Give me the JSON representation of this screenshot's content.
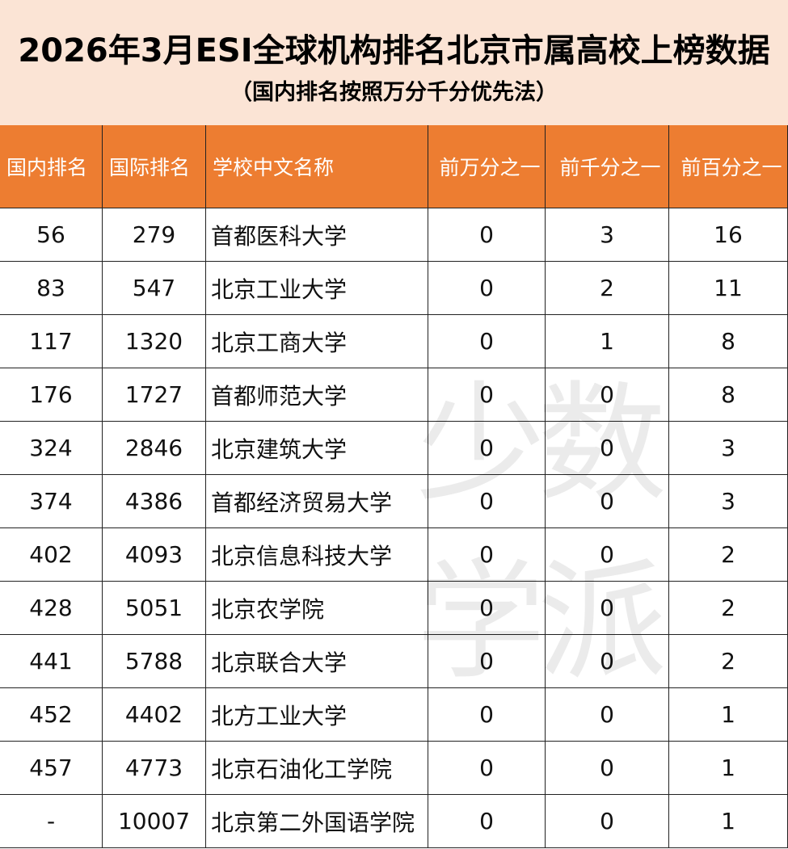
{
  "header": {
    "title": "2026年3月ESI全球机构排名北京市属高校上榜数据",
    "subtitle": "（国内排名按照万分千分优先法）"
  },
  "table": {
    "columns": [
      "国内排名",
      "国际排名",
      "学校中文名称",
      "前万分之一",
      "前千分之一",
      "前百分之一"
    ],
    "rows": [
      [
        "56",
        "279",
        "首都医科大学",
        "0",
        "3",
        "16"
      ],
      [
        "83",
        "547",
        "北京工业大学",
        "0",
        "2",
        "11"
      ],
      [
        "117",
        "1320",
        "北京工商大学",
        "0",
        "1",
        "8"
      ],
      [
        "176",
        "1727",
        "首都师范大学",
        "0",
        "0",
        "8"
      ],
      [
        "324",
        "2846",
        "北京建筑大学",
        "0",
        "0",
        "3"
      ],
      [
        "374",
        "4386",
        "首都经济贸易大学",
        "0",
        "0",
        "3"
      ],
      [
        "402",
        "4093",
        "北京信息科技大学",
        "0",
        "0",
        "2"
      ],
      [
        "428",
        "5051",
        "北京农学院",
        "0",
        "0",
        "2"
      ],
      [
        "441",
        "5788",
        "北京联合大学",
        "0",
        "0",
        "2"
      ],
      [
        "452",
        "4402",
        "北方工业大学",
        "0",
        "0",
        "1"
      ],
      [
        "457",
        "4773",
        "北京石油化工学院",
        "0",
        "0",
        "1"
      ],
      [
        "-",
        "10007",
        "北京第二外国语学院",
        "0",
        "0",
        "1"
      ]
    ]
  },
  "watermark": [
    "少",
    "数",
    "学",
    "派"
  ]
}
